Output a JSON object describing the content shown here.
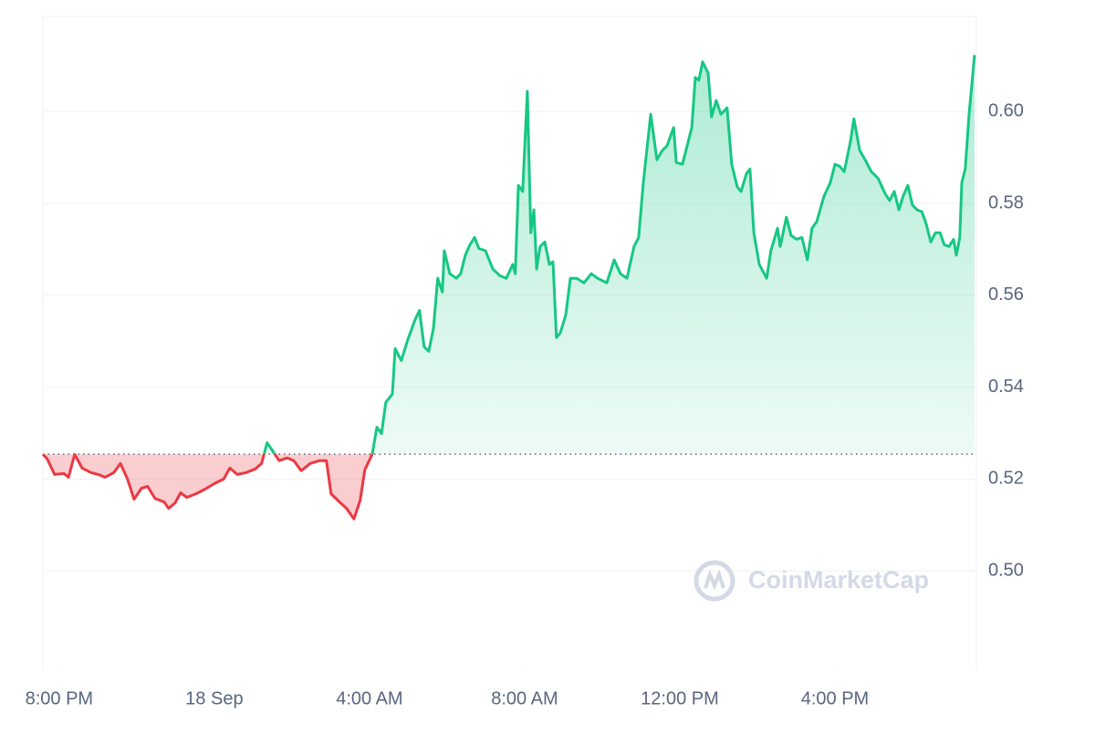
{
  "chart_data": {
    "type": "line",
    "x": [
      -0.42,
      -0.31,
      -0.12,
      0.12,
      0.24,
      0.4,
      0.59,
      0.82,
      1.01,
      1.18,
      1.41,
      1.58,
      1.76,
      1.93,
      2.12,
      2.28,
      2.47,
      2.71,
      2.82,
      2.99,
      3.13,
      3.29,
      3.53,
      3.76,
      4.0,
      4.24,
      4.4,
      4.59,
      4.82,
      5.06,
      5.22,
      5.36,
      5.53,
      5.67,
      5.88,
      6.05,
      6.24,
      6.47,
      6.71,
      6.89,
      7.01,
      7.18,
      7.41,
      7.6,
      7.76,
      7.88,
      8.07,
      8.19,
      8.31,
      8.42,
      8.59,
      8.66,
      8.82,
      8.99,
      9.18,
      9.29,
      9.41,
      9.53,
      9.65,
      9.76,
      9.88,
      9.93,
      10.07,
      10.24,
      10.35,
      10.47,
      10.59,
      10.71,
      10.82,
      10.99,
      11.18,
      11.36,
      11.53,
      11.69,
      11.76,
      11.84,
      11.95,
      12.07,
      12.16,
      12.24,
      12.31,
      12.4,
      12.52,
      12.64,
      12.73,
      12.82,
      12.92,
      13.06,
      13.18,
      13.34,
      13.53,
      13.72,
      13.88,
      14.12,
      14.31,
      14.47,
      14.64,
      14.82,
      14.94,
      15.06,
      15.25,
      15.41,
      15.55,
      15.67,
      15.84,
      15.91,
      16.07,
      16.19,
      16.31,
      16.4,
      16.49,
      16.59,
      16.73,
      16.82,
      16.94,
      17.06,
      17.22,
      17.34,
      17.48,
      17.58,
      17.72,
      17.81,
      17.91,
      18.05,
      18.24,
      18.35,
      18.52,
      18.59,
      18.75,
      18.87,
      19.01,
      19.15,
      19.29,
      19.41,
      19.53,
      19.72,
      19.88,
      20.0,
      20.12,
      20.24,
      20.4,
      20.49,
      20.64,
      20.78,
      20.94,
      21.11,
      21.29,
      21.41,
      21.53,
      21.65,
      21.76,
      21.88,
      22.0,
      22.12,
      22.24,
      22.35,
      22.47,
      22.59,
      22.71,
      22.82,
      22.94,
      23.06,
      23.13,
      23.22,
      23.27,
      23.36,
      23.46,
      23.6
    ],
    "values": [
      0.5254,
      0.5244,
      0.521,
      0.5212,
      0.5204,
      0.5254,
      0.5224,
      0.5214,
      0.521,
      0.5204,
      0.5214,
      0.5234,
      0.52,
      0.5156,
      0.518,
      0.5184,
      0.5158,
      0.515,
      0.5136,
      0.5148,
      0.517,
      0.516,
      0.5168,
      0.5178,
      0.519,
      0.52,
      0.5224,
      0.521,
      0.5214,
      0.5222,
      0.5234,
      0.5279,
      0.5258,
      0.524,
      0.5246,
      0.524,
      0.5218,
      0.5234,
      0.524,
      0.524,
      0.5168,
      0.5154,
      0.5136,
      0.5113,
      0.5154,
      0.522,
      0.5254,
      0.5313,
      0.5299,
      0.5367,
      0.5385,
      0.5484,
      0.5458,
      0.5504,
      0.5548,
      0.5567,
      0.5488,
      0.5478,
      0.5528,
      0.5637,
      0.5607,
      0.5697,
      0.5647,
      0.5637,
      0.5647,
      0.5687,
      0.571,
      0.5726,
      0.5702,
      0.5697,
      0.5657,
      0.5643,
      0.5637,
      0.5667,
      0.5647,
      0.5839,
      0.5826,
      0.6044,
      0.5736,
      0.5786,
      0.5657,
      0.5706,
      0.5716,
      0.5667,
      0.5673,
      0.5508,
      0.5518,
      0.5557,
      0.5637,
      0.5637,
      0.5627,
      0.5647,
      0.5637,
      0.5627,
      0.5677,
      0.5647,
      0.5637,
      0.5706,
      0.5726,
      0.5845,
      0.5994,
      0.5895,
      0.5915,
      0.5925,
      0.5965,
      0.5889,
      0.5885,
      0.5925,
      0.5965,
      0.6074,
      0.6068,
      0.6108,
      0.6084,
      0.5988,
      0.6024,
      0.5994,
      0.6008,
      0.5885,
      0.5836,
      0.5826,
      0.5865,
      0.5875,
      0.5736,
      0.5667,
      0.5637,
      0.5697,
      0.5746,
      0.5706,
      0.577,
      0.573,
      0.5722,
      0.5726,
      0.5677,
      0.5746,
      0.576,
      0.5816,
      0.5845,
      0.5885,
      0.5881,
      0.5869,
      0.5935,
      0.5984,
      0.5915,
      0.5895,
      0.5869,
      0.5855,
      0.5822,
      0.5806,
      0.5826,
      0.5786,
      0.5816,
      0.5839,
      0.5796,
      0.5786,
      0.5782,
      0.5756,
      0.5716,
      0.5736,
      0.5736,
      0.571,
      0.5706,
      0.5722,
      0.5687,
      0.5726,
      0.5845,
      0.5875,
      0.5994,
      0.6123
    ],
    "baseline": 0.5254,
    "up_color": "#16c784",
    "down_color": "#ea3943",
    "xlim": [
      -0.42,
      23.6
    ],
    "xticks": [
      {
        "value": 0,
        "label": "8:00 PM"
      },
      {
        "value": 4,
        "label": "18 Sep"
      },
      {
        "value": 8,
        "label": "4:00 AM"
      },
      {
        "value": 12,
        "label": "8:00 AM"
      },
      {
        "value": 16,
        "label": "12:00 PM"
      },
      {
        "value": 20,
        "label": "4:00 PM"
      }
    ],
    "ylim": [
      0.4784,
      0.6207
    ],
    "yticks": [
      {
        "value": 0.5,
        "label": "0.50"
      },
      0.52,
      0.54,
      0.56,
      0.58,
      {
        "value": 0.6,
        "label": "0.60"
      }
    ],
    "grid": true,
    "watermark": "CoinMarketCap"
  }
}
